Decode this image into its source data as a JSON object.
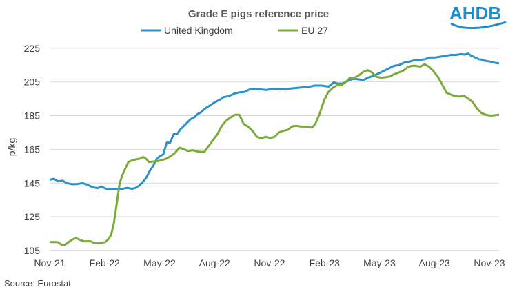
{
  "logo": {
    "text": "AHDB",
    "color": "#1d8dcc"
  },
  "source": "Source: Eurostat",
  "chart_data": {
    "type": "line",
    "title": "Grade E pigs reference price",
    "xlabel": "",
    "ylabel": "p/kg",
    "ylim": [
      105,
      229
    ],
    "yticks": [
      105,
      125,
      145,
      165,
      185,
      205,
      225
    ],
    "xticks": [
      "Nov-21",
      "Feb-22",
      "May-22",
      "Aug-22",
      "Nov-22",
      "Feb-23",
      "May-23",
      "Aug-23",
      "Nov-23"
    ],
    "grid": true,
    "legend": "top",
    "x_start": 0,
    "x_end": 25.1,
    "series": [
      {
        "name": "United Kingdom",
        "color": "#2c91c9",
        "points": [
          [
            0,
            147
          ],
          [
            0.25,
            147.5
          ],
          [
            0.5,
            146
          ],
          [
            0.75,
            146.4
          ],
          [
            1.0,
            145
          ],
          [
            1.3,
            144.3
          ],
          [
            1.6,
            144.4
          ],
          [
            1.9,
            145
          ],
          [
            2.2,
            144
          ],
          [
            2.5,
            142.5
          ],
          [
            2.8,
            142
          ],
          [
            3.0,
            143
          ],
          [
            3.3,
            141.5
          ],
          [
            3.6,
            141.5
          ],
          [
            3.9,
            141.6
          ],
          [
            4.2,
            141.5
          ],
          [
            4.5,
            142.2
          ],
          [
            4.8,
            141.6
          ],
          [
            5.0,
            142.2
          ],
          [
            5.2,
            143.5
          ],
          [
            5.4,
            145.5
          ],
          [
            5.6,
            148
          ],
          [
            5.8,
            152
          ],
          [
            6.0,
            155
          ],
          [
            6.2,
            159
          ],
          [
            6.4,
            161
          ],
          [
            6.6,
            162
          ],
          [
            6.8,
            169
          ],
          [
            7.0,
            169
          ],
          [
            7.2,
            174
          ],
          [
            7.4,
            174
          ],
          [
            7.6,
            177
          ],
          [
            7.8,
            179
          ],
          [
            8.0,
            181
          ],
          [
            8.2,
            183
          ],
          [
            8.4,
            184
          ],
          [
            8.6,
            186
          ],
          [
            8.8,
            187
          ],
          [
            9.0,
            189
          ],
          [
            9.3,
            191
          ],
          [
            9.6,
            193
          ],
          [
            9.9,
            194.5
          ],
          [
            10.1,
            196
          ],
          [
            10.4,
            196.5
          ],
          [
            10.7,
            198
          ],
          [
            11.0,
            198.8
          ],
          [
            11.3,
            199
          ],
          [
            11.6,
            200.5
          ],
          [
            11.9,
            200.8
          ],
          [
            12.3,
            200.5
          ],
          [
            12.6,
            200.2
          ],
          [
            12.9,
            200.8
          ],
          [
            13.2,
            201
          ],
          [
            13.5,
            200.6
          ],
          [
            13.8,
            200.9
          ],
          [
            14.2,
            201.3
          ],
          [
            14.6,
            201.7
          ],
          [
            15.0,
            202
          ],
          [
            15.4,
            202.8
          ],
          [
            15.8,
            202.8
          ],
          [
            16.2,
            202.2
          ],
          [
            16.5,
            204.8
          ],
          [
            16.7,
            204
          ],
          [
            17.0,
            204
          ],
          [
            17.3,
            205.5
          ],
          [
            17.6,
            206.8
          ],
          [
            17.9,
            206.6
          ],
          [
            18.2,
            206
          ],
          [
            18.5,
            207.5
          ],
          [
            18.8,
            208.5
          ],
          [
            19.1,
            210
          ],
          [
            19.4,
            211.5
          ],
          [
            19.7,
            213
          ],
          [
            20.0,
            214.5
          ],
          [
            20.3,
            215
          ],
          [
            20.6,
            216.5
          ],
          [
            20.9,
            217
          ],
          [
            21.2,
            218
          ],
          [
            21.5,
            218
          ],
          [
            21.8,
            218.5
          ],
          [
            22.1,
            219.5
          ],
          [
            22.4,
            219.5
          ],
          [
            22.7,
            220
          ],
          [
            23.0,
            220.5
          ],
          [
            23.3,
            221
          ],
          [
            23.6,
            221
          ],
          [
            23.9,
            221.5
          ],
          [
            24.1,
            221.2
          ],
          [
            24.3,
            221.8
          ],
          [
            24.5,
            220.5
          ],
          [
            24.7,
            219.5
          ],
          [
            24.9,
            218.5
          ],
          [
            25.1,
            218.2
          ],
          [
            25.3,
            217.5
          ],
          [
            25.5,
            217.2
          ],
          [
            25.7,
            216.8
          ],
          [
            25.9,
            216.2
          ],
          [
            26.1,
            216
          ]
        ]
      },
      {
        "name": "EU 27",
        "color": "#7aab3a",
        "points": [
          [
            0,
            110
          ],
          [
            0.3,
            110
          ],
          [
            0.55,
            110
          ],
          [
            0.8,
            108.5
          ],
          [
            1.05,
            108.3
          ],
          [
            1.3,
            110
          ],
          [
            1.55,
            111.5
          ],
          [
            1.8,
            112.3
          ],
          [
            2.05,
            111.5
          ],
          [
            2.3,
            110.5
          ],
          [
            2.55,
            110.5
          ],
          [
            2.8,
            110.5
          ],
          [
            3.05,
            109.5
          ],
          [
            3.3,
            109.2
          ],
          [
            3.55,
            109.5
          ],
          [
            3.8,
            110
          ],
          [
            4.0,
            111.5
          ],
          [
            4.2,
            114
          ],
          [
            4.4,
            121
          ],
          [
            4.6,
            133
          ],
          [
            4.8,
            145
          ],
          [
            5.0,
            150
          ],
          [
            5.2,
            154
          ],
          [
            5.4,
            157.5
          ],
          [
            5.6,
            158.3
          ],
          [
            5.9,
            159
          ],
          [
            6.2,
            159.5
          ],
          [
            6.4,
            160.5
          ],
          [
            6.6,
            159.5
          ],
          [
            6.8,
            157.5
          ],
          [
            7.1,
            157.8
          ],
          [
            7.4,
            158
          ],
          [
            7.7,
            158.6
          ],
          [
            8.0,
            159.5
          ],
          [
            8.3,
            161
          ],
          [
            8.6,
            163
          ],
          [
            8.9,
            166
          ],
          [
            9.2,
            165
          ],
          [
            9.5,
            164
          ],
          [
            9.8,
            164.5
          ],
          [
            10.0,
            164
          ],
          [
            10.3,
            163.5
          ],
          [
            10.6,
            163.5
          ],
          [
            10.9,
            167
          ],
          [
            11.2,
            170.5
          ],
          [
            11.5,
            174
          ],
          [
            11.8,
            179
          ],
          [
            12.1,
            182
          ],
          [
            12.4,
            184
          ],
          [
            12.7,
            185.5
          ],
          [
            13.0,
            185.5
          ],
          [
            13.3,
            180
          ],
          [
            13.6,
            178.5
          ],
          [
            13.9,
            176
          ],
          [
            14.2,
            172.5
          ],
          [
            14.5,
            171.5
          ],
          [
            14.8,
            172.5
          ],
          [
            15.1,
            171.8
          ],
          [
            15.4,
            172.3
          ],
          [
            15.7,
            175
          ],
          [
            16.0,
            176
          ],
          [
            16.3,
            176.5
          ],
          [
            16.6,
            178.5
          ],
          [
            16.9,
            179
          ],
          [
            17.2,
            178.5
          ],
          [
            17.5,
            178.5
          ],
          [
            17.8,
            178
          ],
          [
            18.0,
            178
          ],
          [
            18.2,
            180
          ],
          [
            18.5,
            186
          ],
          [
            18.8,
            194
          ],
          [
            19.1,
            199
          ],
          [
            19.4,
            201.5
          ],
          [
            19.7,
            203
          ],
          [
            20.0,
            203
          ],
          [
            20.3,
            205
          ],
          [
            20.6,
            207.5
          ],
          [
            20.9,
            207.5
          ],
          [
            21.2,
            209
          ],
          [
            21.5,
            211
          ],
          [
            21.8,
            212
          ],
          [
            22.1,
            210.5
          ],
          [
            22.4,
            208
          ],
          [
            22.7,
            207.5
          ],
          [
            23.0,
            207.7
          ],
          [
            23.3,
            208.2
          ],
          [
            23.6,
            209.5
          ],
          [
            23.9,
            210.5
          ],
          [
            24.2,
            211.5
          ],
          [
            24.5,
            213.5
          ],
          [
            24.8,
            214.5
          ],
          [
            25.1,
            214.5
          ],
          [
            25.4,
            214
          ],
          [
            25.7,
            215.5
          ],
          [
            26.0,
            214
          ],
          [
            26.3,
            211.5
          ],
          [
            26.6,
            208
          ],
          [
            26.9,
            203.5
          ],
          [
            27.2,
            198.5
          ],
          [
            27.5,
            197.5
          ],
          [
            27.8,
            196.5
          ],
          [
            28.1,
            196.3
          ],
          [
            28.4,
            196.8
          ],
          [
            28.7,
            195
          ],
          [
            29.0,
            193
          ],
          [
            29.3,
            189
          ],
          [
            29.6,
            186.5
          ],
          [
            29.9,
            185.5
          ],
          [
            30.2,
            185
          ],
          [
            30.5,
            185.2
          ],
          [
            30.8,
            185.5
          ]
        ]
      }
    ]
  }
}
